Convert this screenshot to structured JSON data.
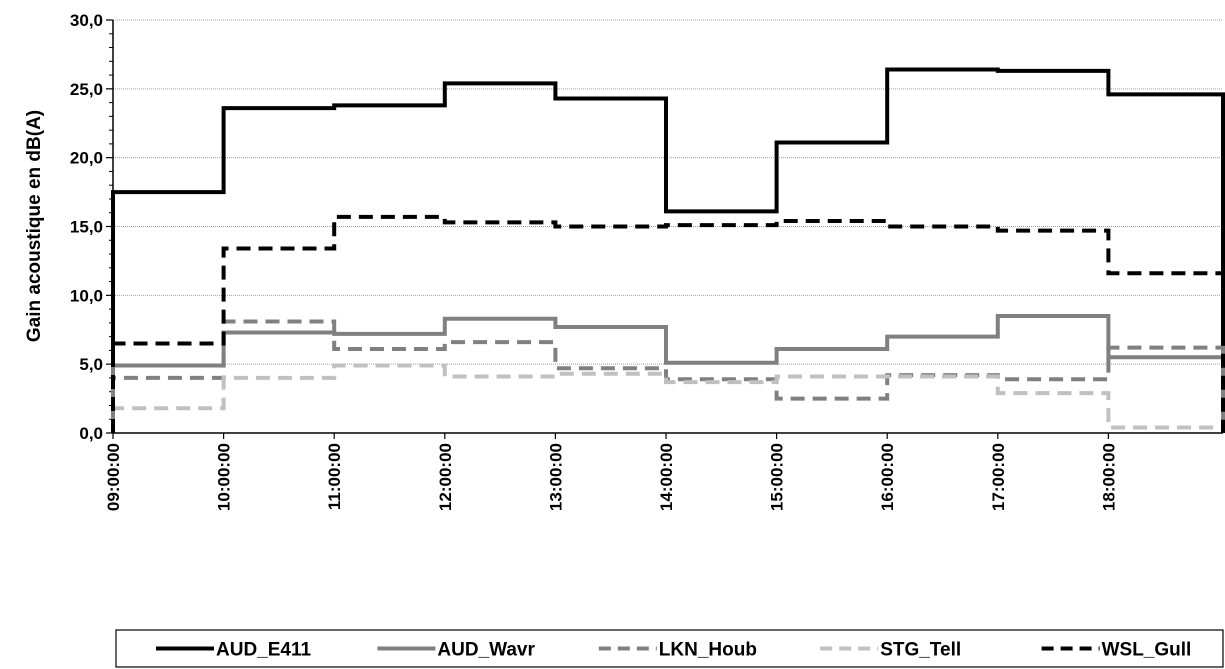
{
  "chart_data": {
    "type": "line",
    "step": true,
    "title": "",
    "xlabel": "",
    "ylabel": "Gain acoustique en dB(A)",
    "ylim": [
      0,
      30
    ],
    "y_ticks": [
      "0,0",
      "5,0",
      "10,0",
      "15,0",
      "20,0",
      "25,0",
      "30,0"
    ],
    "x": [
      "09:00:00",
      "10:00:00",
      "11:00:00",
      "12:00:00",
      "13:00:00",
      "14:00:00",
      "15:00:00",
      "16:00:00",
      "17:00:00",
      "18:00:00"
    ],
    "grid": true,
    "legend_position": "bottom",
    "series": [
      {
        "name": "AUD_E411",
        "color": "#000000",
        "dash": "solid",
        "values": [
          17.5,
          23.6,
          23.8,
          25.4,
          24.3,
          16.1,
          21.1,
          26.4,
          26.3,
          24.6
        ]
      },
      {
        "name": "AUD_Wavr",
        "color": "#808080",
        "dash": "solid",
        "values": [
          4.9,
          7.3,
          7.2,
          8.3,
          7.7,
          5.1,
          6.1,
          7.0,
          8.5,
          5.5
        ]
      },
      {
        "name": "LKN_Houb",
        "color": "#808080",
        "dash": "dashed",
        "values": [
          4.0,
          8.1,
          6.1,
          6.6,
          4.7,
          3.9,
          2.5,
          4.2,
          3.9,
          6.2
        ]
      },
      {
        "name": "STG_Tell",
        "color": "#c0c0c0",
        "dash": "dashed",
        "values": [
          1.8,
          4.0,
          4.9,
          4.1,
          4.3,
          3.7,
          4.1,
          4.1,
          2.9,
          0.4
        ]
      },
      {
        "name": "WSL_Gull",
        "color": "#000000",
        "dash": "dashed",
        "values": [
          6.5,
          13.4,
          15.7,
          15.3,
          15.0,
          15.1,
          15.4,
          15.0,
          14.7,
          11.6
        ]
      }
    ]
  }
}
